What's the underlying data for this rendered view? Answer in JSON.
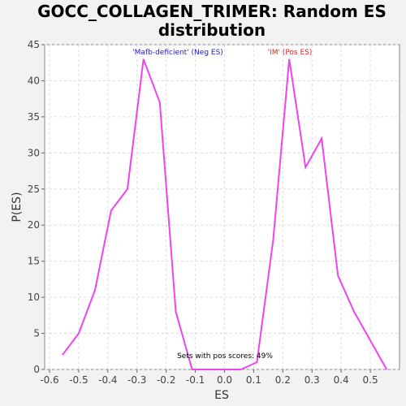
{
  "chart_data": {
    "type": "line",
    "title_line1": "GOCC_COLLAGEN_TRIMER: Random ES",
    "title_line2": "distribution",
    "xlabel": "ES",
    "ylabel": "P(ES)",
    "xlim": [
      -0.6,
      0.6
    ],
    "ylim": [
      0,
      45
    ],
    "x_ticks": [
      -0.6,
      -0.5,
      -0.4,
      -0.3,
      -0.2,
      -0.1,
      0.0,
      0.1,
      0.2,
      0.3,
      0.4,
      0.5
    ],
    "x_tick_labels": [
      "-0.6",
      "-0.5",
      "-0.4",
      "-0.3",
      "-0.2",
      "-0.1",
      "0.0",
      "0.1",
      "0.2",
      "0.3",
      "0.4",
      "0.5"
    ],
    "y_ticks": [
      0,
      5,
      10,
      15,
      20,
      25,
      30,
      35,
      40,
      45
    ],
    "y_tick_labels": [
      "0",
      "5",
      "10",
      "15",
      "20",
      "25",
      "30",
      "35",
      "40",
      "45"
    ],
    "grid": true,
    "series": [
      {
        "color": "#ee44ee",
        "x": [
          -0.556,
          -0.5,
          -0.444,
          -0.389,
          -0.333,
          -0.278,
          -0.222,
          -0.167,
          -0.111,
          -0.056,
          0.0,
          0.056,
          0.111,
          0.167,
          0.222,
          0.278,
          0.333,
          0.389,
          0.444,
          0.5,
          0.556
        ],
        "y": [
          2,
          5,
          11,
          22,
          25,
          43,
          37,
          8,
          0,
          0,
          0,
          0,
          1,
          18,
          43,
          28,
          32,
          13,
          8,
          4,
          0
        ]
      }
    ],
    "annotations": {
      "neg_label": "'Mafb-deficient' (Neg ES)",
      "neg_color": "#2222bb",
      "pos_label": "'IM' (Pos ES)",
      "pos_color": "#dd2222",
      "sets_label": "Sets with pos scores: 49%"
    }
  }
}
